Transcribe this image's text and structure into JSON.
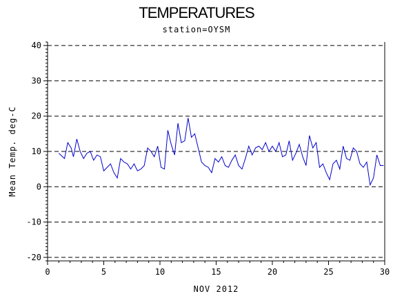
{
  "chart_data": {
    "type": "line",
    "title": "TEMPERATURES",
    "subtitle": "station=OYSM",
    "xlabel": "NOV 2012",
    "ylabel": "Mean Temp. deg-C",
    "xlim": [
      0,
      30
    ],
    "ylim": [
      -21,
      41
    ],
    "xticks": [
      0,
      5,
      10,
      15,
      20,
      25,
      30
    ],
    "yticks": [
      -20,
      -10,
      0,
      10,
      20,
      30,
      40
    ],
    "grid": "dashed horizontal at y ticks",
    "series": [
      {
        "color": "#0000cc",
        "x": [
          1.0,
          1.5,
          1.8,
          2.1,
          2.3,
          2.6,
          2.9,
          3.2,
          3.5,
          3.8,
          4.1,
          4.4,
          4.7,
          5.0,
          5.3,
          5.6,
          5.9,
          6.2,
          6.5,
          6.8,
          7.1,
          7.4,
          7.7,
          8.0,
          8.3,
          8.6,
          8.9,
          9.2,
          9.5,
          9.8,
          10.1,
          10.4,
          10.7,
          11.0,
          11.3,
          11.6,
          11.9,
          12.2,
          12.5,
          12.8,
          13.1,
          13.4,
          13.7,
          14.0,
          14.3,
          14.6,
          14.9,
          15.2,
          15.5,
          15.8,
          16.1,
          16.4,
          16.7,
          17.0,
          17.3,
          17.6,
          17.9,
          18.2,
          18.5,
          18.8,
          19.1,
          19.4,
          19.7,
          20.0,
          20.3,
          20.6,
          20.9,
          21.2,
          21.5,
          21.8,
          22.1,
          22.4,
          22.7,
          23.0,
          23.3,
          23.6,
          23.9,
          24.2,
          24.5,
          24.8,
          25.1,
          25.4,
          25.7,
          26.0,
          26.3,
          26.6,
          26.9,
          27.2,
          27.5,
          27.8,
          28.1,
          28.4,
          28.7,
          29.0,
          29.3,
          29.6,
          29.9
        ],
        "y": [
          9.5,
          8.0,
          12.5,
          11.0,
          8.5,
          13.5,
          10.0,
          8.0,
          9.5,
          10.0,
          7.5,
          9.0,
          8.5,
          4.5,
          5.5,
          6.5,
          4.0,
          2.5,
          8.0,
          7.0,
          6.5,
          5.0,
          6.5,
          4.5,
          5.0,
          6.0,
          11.0,
          10.0,
          8.5,
          11.5,
          5.5,
          5.0,
          16.0,
          12.0,
          9.0,
          18.0,
          12.5,
          13.0,
          19.5,
          14.0,
          15.0,
          11.0,
          7.0,
          6.0,
          5.5,
          4.0,
          8.0,
          7.0,
          8.5,
          6.0,
          5.5,
          7.5,
          9.0,
          6.0,
          5.0,
          8.0,
          11.5,
          9.0,
          11.0,
          11.5,
          10.5,
          12.5,
          10.0,
          11.5,
          10.0,
          12.5,
          8.5,
          9.0,
          13.0,
          7.5,
          9.5,
          12.0,
          8.5,
          6.0,
          14.5,
          11.0,
          12.5,
          5.5,
          6.5,
          4.0,
          2.0,
          6.5,
          7.5,
          5.0,
          11.5,
          8.0,
          7.5,
          11.0,
          10.0,
          6.5,
          5.5,
          7.0,
          0.5,
          2.5,
          9.0,
          6.0,
          6.0
        ]
      }
    ]
  }
}
